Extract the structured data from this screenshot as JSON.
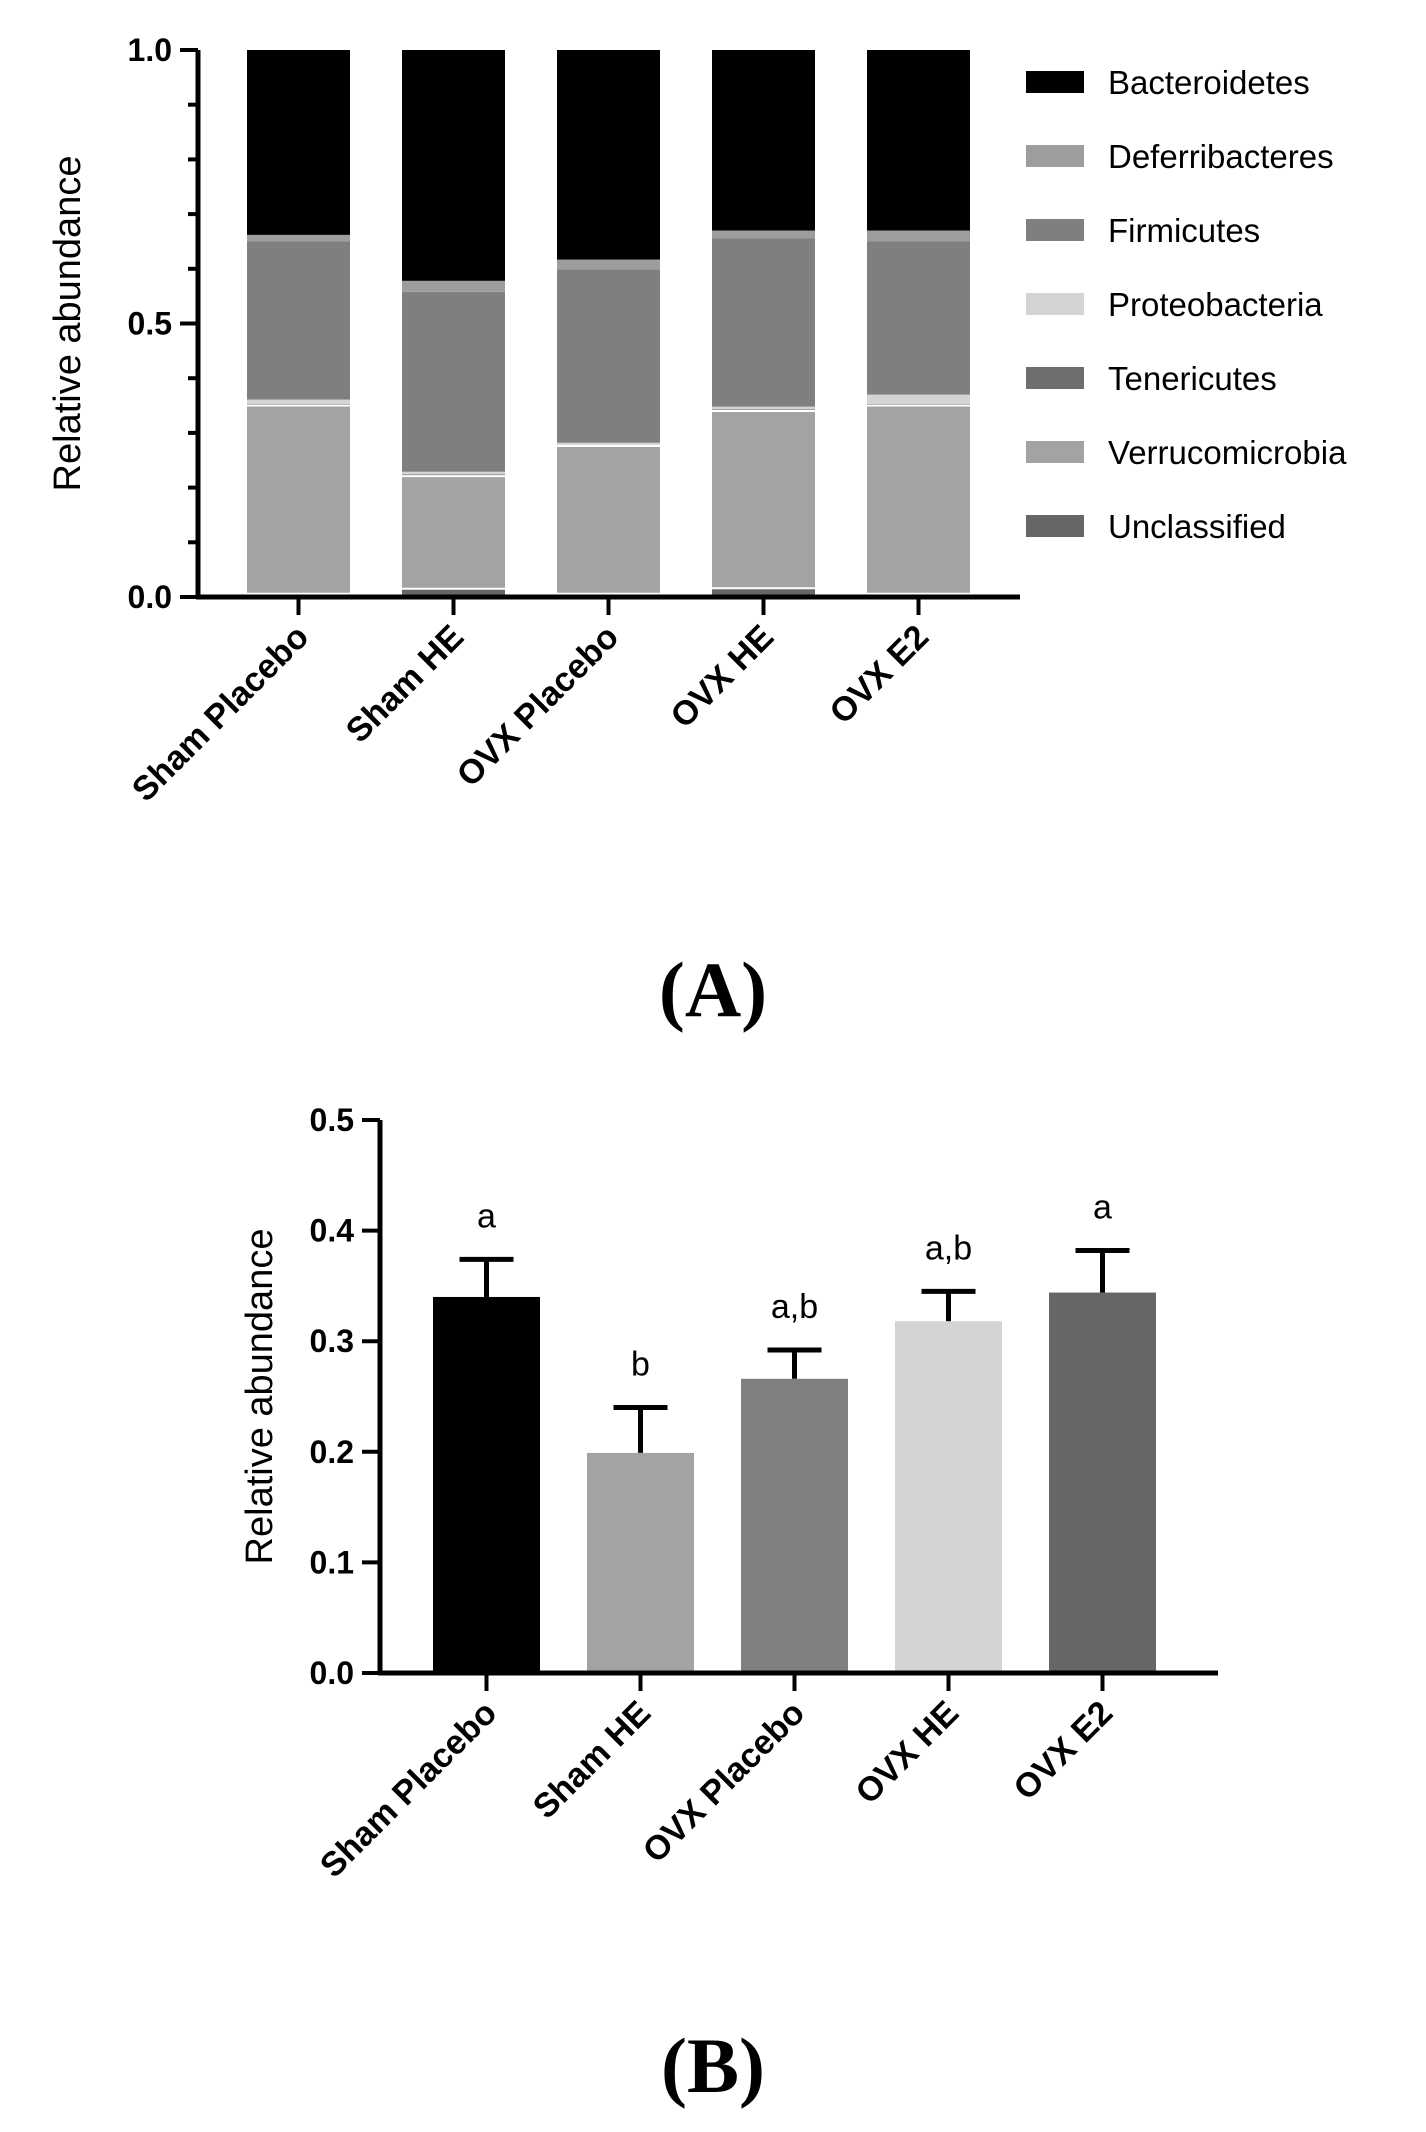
{
  "chart_data": [
    {
      "type": "bar",
      "stacked": true,
      "panel_label": "(A)",
      "ylabel": "Relative abundance",
      "ylim": [
        0,
        1.0
      ],
      "yticks": [
        "0.0",
        "0.5",
        "1.0"
      ],
      "categories": [
        "Sham Placebo",
        "Sham HE",
        "OVX Placebo",
        "OVX HE",
        "OVX E2"
      ],
      "legend_position": "right",
      "series": [
        {
          "name": "Unclassified",
          "color": "#666666",
          "values": [
            0.006,
            0.015,
            0.006,
            0.016,
            0.006
          ]
        },
        {
          "name": "Verrucomicrobia",
          "color": "#a3a3a6",
          "values": [
            0.344,
            0.206,
            0.27,
            0.324,
            0.344
          ]
        },
        {
          "name": "Tenericutes",
          "color": "#6e6e6e",
          "values": [
            0.003,
            0.003,
            0.002,
            0.003,
            0.003
          ]
        },
        {
          "name": "Proteobacteria",
          "color": "#d4d4d4",
          "values": [
            0.008,
            0.005,
            0.004,
            0.005,
            0.017
          ]
        },
        {
          "name": "Firmicutes",
          "color": "#7f7f7f",
          "values": [
            0.289,
            0.329,
            0.317,
            0.308,
            0.28
          ]
        },
        {
          "name": "Deferribacteres",
          "color": "#9d9da0",
          "values": [
            0.012,
            0.02,
            0.018,
            0.014,
            0.02
          ]
        },
        {
          "name": "Bacteroidetes",
          "color": "#000000",
          "values": [
            0.338,
            0.422,
            0.383,
            0.33,
            0.33
          ]
        }
      ],
      "legend_order": [
        "Bacteroidetes",
        "Deferribacteres",
        "Firmicutes",
        "Proteobacteria",
        "Tenericutes",
        "Verrucomicrobia",
        "Unclassified"
      ]
    },
    {
      "type": "bar",
      "panel_label": "(B)",
      "ylabel": "Relative abundance",
      "ylim": [
        0,
        0.5
      ],
      "yticks": [
        "0.0",
        "0.1",
        "0.2",
        "0.3",
        "0.4",
        "0.5"
      ],
      "categories": [
        "Sham Placebo",
        "Sham HE",
        "OVX Placebo",
        "OVX HE",
        "OVX E2"
      ],
      "values": [
        0.34,
        0.199,
        0.266,
        0.318,
        0.344
      ],
      "errors": [
        0.034,
        0.041,
        0.026,
        0.027,
        0.038
      ],
      "colors": [
        "#000000",
        "#a3a3a6",
        "#808080",
        "#d4d4d4",
        "#666666"
      ],
      "annotations": [
        "a",
        "b",
        "a,b",
        "a,b",
        "a"
      ]
    }
  ]
}
